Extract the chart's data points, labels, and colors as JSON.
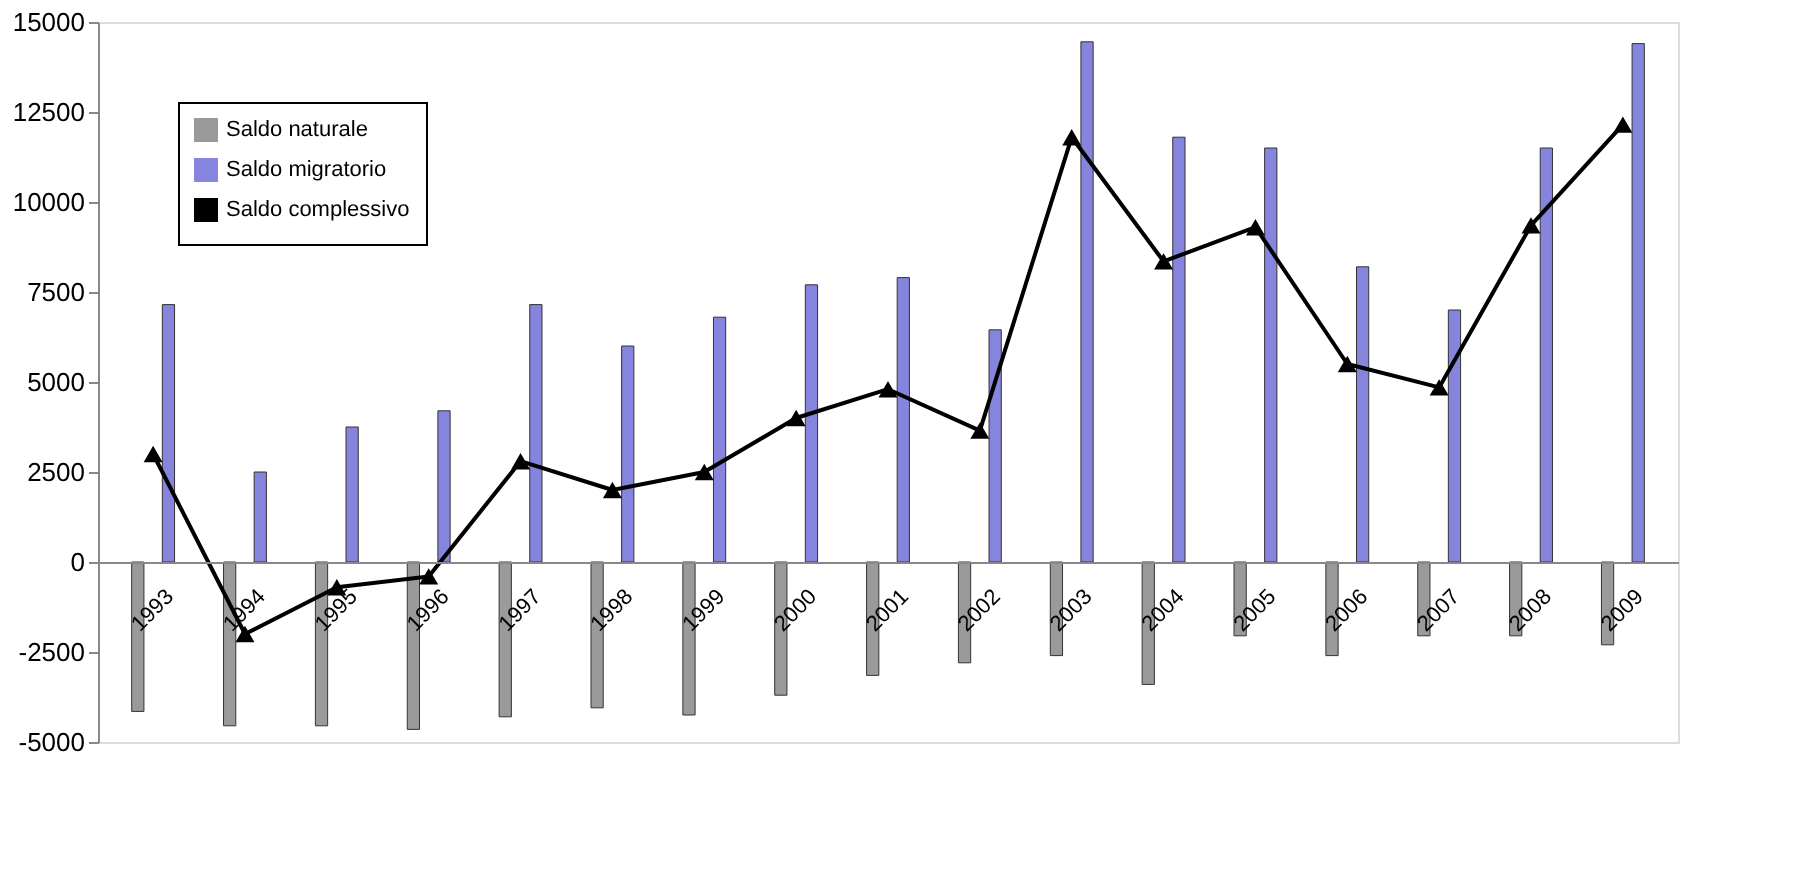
{
  "chart_data": {
    "type": "bar",
    "categories": [
      "1993",
      "1994",
      "1995",
      "1996",
      "1997",
      "1998",
      "1999",
      "2000",
      "2001",
      "2002",
      "2003",
      "2004",
      "2005",
      "2006",
      "2007",
      "2008",
      "2009"
    ],
    "series": [
      {
        "name": "Saldo naturale",
        "type": "bar",
        "color": "#9a9a9a",
        "values": [
          -4150,
          -4550,
          -4550,
          -4650,
          -4300,
          -4050,
          -4250,
          -3700,
          -3150,
          -2800,
          -2600,
          -3400,
          -2050,
          -2600,
          -2050,
          -2050,
          -2300
        ]
      },
      {
        "name": "Saldo migratorio",
        "type": "bar",
        "color": "#8585dd",
        "values": [
          7150,
          2500,
          3750,
          4200,
          7150,
          6000,
          6800,
          7700,
          7900,
          6450,
          14450,
          11800,
          11500,
          8200,
          7000,
          11500,
          14400
        ]
      },
      {
        "name": "Saldo complessivo",
        "type": "line",
        "color": "#000000",
        "marker": "triangle",
        "values": [
          3000,
          -2000,
          -700,
          -400,
          2800,
          2000,
          2500,
          4000,
          4800,
          3650,
          11800,
          8350,
          9300,
          5500,
          4850,
          9350,
          12150
        ]
      }
    ],
    "ylim": [
      -5000,
      15000
    ],
    "yticks": [
      -5000,
      -2500,
      0,
      2500,
      5000,
      7500,
      10000,
      12500,
      15000
    ],
    "grid": false,
    "legend": "top left"
  }
}
